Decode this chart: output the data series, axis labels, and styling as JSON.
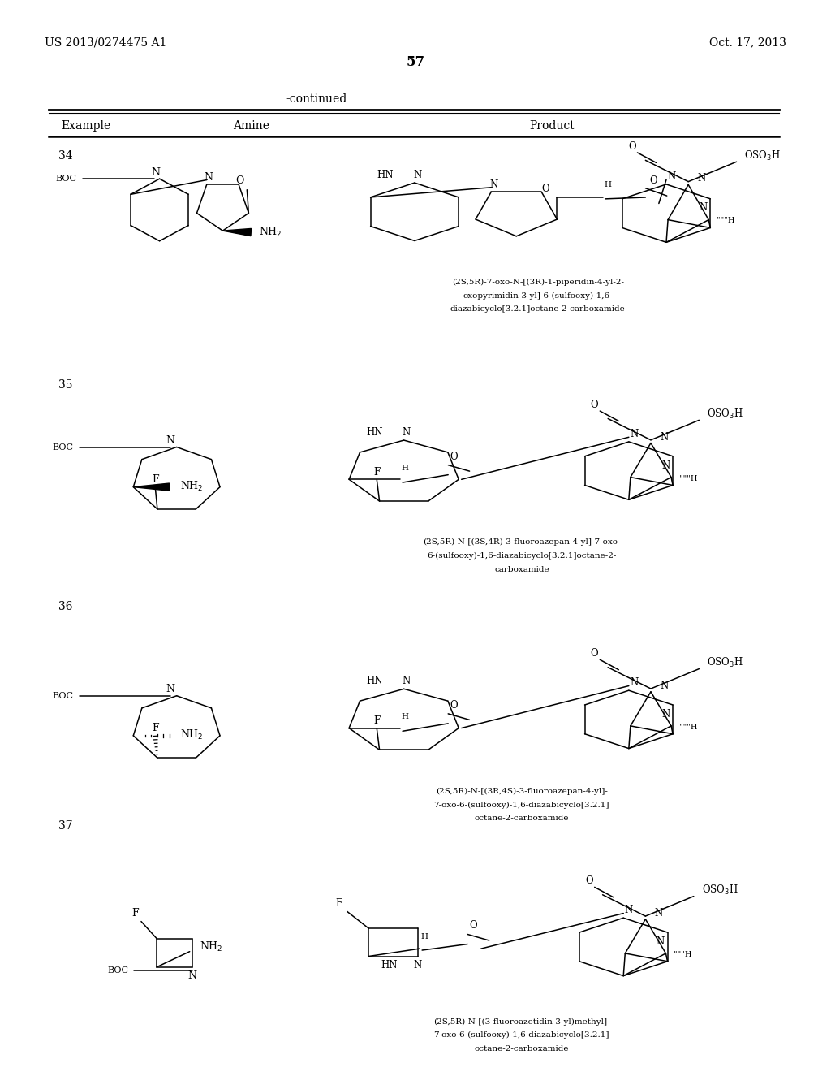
{
  "background_color": "#ffffff",
  "page_number": "57",
  "patent_left": "US 2013/0274475 A1",
  "patent_right": "Oct. 17, 2013",
  "continued_text": "-continued",
  "row_examples": [
    "34",
    "35",
    "36",
    "37"
  ],
  "product_names": [
    [
      "(2S,5R)-7-oxo-N-[(3R)-1-piperidin-4-yl-2-",
      "oxopyrimidin-3-yl]-6-(sulfooxy)-1,6-",
      "diazabicyclo[3.2.1]octane-2-carboxamide"
    ],
    [
      "(2S,5R)-N-[(3S,4R)-3-fluoroazepan-4-yl]-7-oxo-",
      "6-(sulfooxy)-1,6-diazabicyclo[3.2.1]octane-2-",
      "carboxamide"
    ],
    [
      "(2S,5R)-N-[(3R,4S)-3-fluoroazepan-4-yl]-",
      "7-oxo-6-(sulfooxy)-1,6-diazabicyclo[3.2.1]",
      "octane-2-carboxamide"
    ],
    [
      "(2S,5R)-N-[(3-fluoroazetidin-3-yl)methyl]-",
      "7-oxo-6-(sulfooxy)-1,6-diazabicyclo[3.2.1]",
      "octane-2-carboxamide"
    ]
  ]
}
